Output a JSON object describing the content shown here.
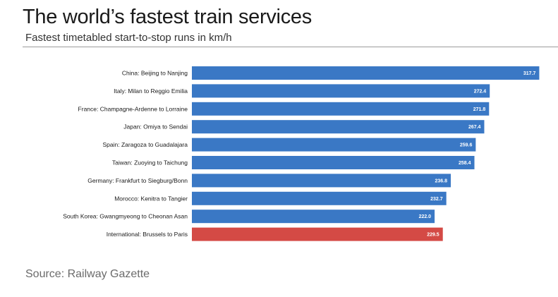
{
  "header": {
    "title": "The world’s fastest train services",
    "subtitle": "Fastest timetabled start-to-stop runs in km/h"
  },
  "footer": {
    "source": "Source: Railway Gazette"
  },
  "colors": {
    "bar": "#3a78c5",
    "highlight": "#d44a45",
    "value_text": "#ffffff",
    "label_text": "#1a1a1a"
  },
  "chart_data": {
    "type": "bar",
    "orientation": "horizontal",
    "categories": [
      "China: Beijing to Nanjing",
      "Italy: Milan to Reggio Emilia",
      "France: Champagne-Ardenne to Lorraine",
      "Japan: Omiya to Sendai",
      "Spain: Zaragoza to Guadalajara",
      "Taiwan: Zuoying to Taichung",
      "Germany: Frankfurt to Siegburg/Bonn",
      "Morocco: Kenitra to Tangier",
      "South Korea: Gwangmyeong to Cheonan Asan",
      "International: Brussels to Paris"
    ],
    "values": [
      317.7,
      272.4,
      271.8,
      267.4,
      259.6,
      258.4,
      236.8,
      232.7,
      222.0,
      229.5
    ],
    "value_labels": [
      "317.7",
      "272.4",
      "271.8",
      "267.4",
      "259.6",
      "258.4",
      "236.8",
      "232.7",
      "222.0",
      "229.5"
    ],
    "highlight_index": 9,
    "xlim": [
      0,
      325
    ],
    "grid": false,
    "legend": "none"
  }
}
